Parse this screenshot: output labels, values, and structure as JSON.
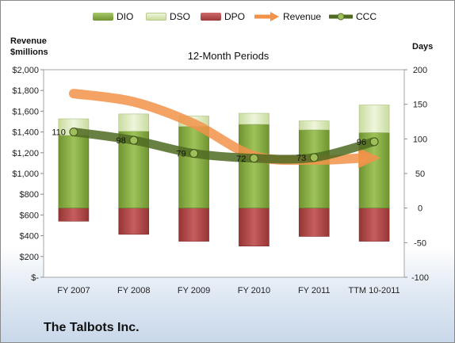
{
  "chart_data": {
    "type": "bar",
    "title": "12-Month Periods",
    "ylabel_left": "Revenue\n$millions",
    "ylabel_right": "Days",
    "categories": [
      "FY 2007",
      "FY 2008",
      "FY 2009",
      "FY 2010",
      "FY 2011",
      "TTM 10-2011"
    ],
    "y_left_ticks": [
      "$-",
      "$200",
      "$400",
      "$600",
      "$800",
      "$1,000",
      "$1,200",
      "$1,400",
      "$1,600",
      "$1,800",
      "$2,000"
    ],
    "y_left_range": [
      0,
      2000
    ],
    "y_right_ticks": [
      "-100",
      "-50",
      "0",
      "50",
      "100",
      "150",
      "200"
    ],
    "y_right_range": [
      -100,
      200
    ],
    "grid": false,
    "legend_position": "top",
    "series": [
      {
        "name": "DIO",
        "axis": "right",
        "kind": "stacked-bar",
        "values": [
          105,
          111,
          118,
          121,
          113,
          109
        ],
        "color": "#7fa63a"
      },
      {
        "name": "DSO",
        "axis": "right",
        "kind": "stacked-bar",
        "values": [
          24,
          25,
          15,
          16,
          13,
          40
        ],
        "color": "#d8e6b4"
      },
      {
        "name": "DPO",
        "axis": "right",
        "kind": "stacked-bar",
        "values": [
          -19,
          -38,
          -48,
          -55,
          -41,
          -48
        ],
        "color": "#b14a4a"
      },
      {
        "name": "Revenue",
        "axis": "left",
        "kind": "line",
        "values": [
          1770,
          1690,
          1480,
          1170,
          1130,
          1150
        ],
        "color": "#f2934a"
      },
      {
        "name": "CCC",
        "axis": "right",
        "kind": "line",
        "values": [
          110,
          98,
          79,
          72,
          73,
          96
        ],
        "color": "#4f6a22"
      }
    ],
    "data_labels": [
      "110",
      "98",
      "79",
      "72",
      "73",
      "96"
    ]
  },
  "footer": {
    "company": "The Talbots Inc."
  }
}
